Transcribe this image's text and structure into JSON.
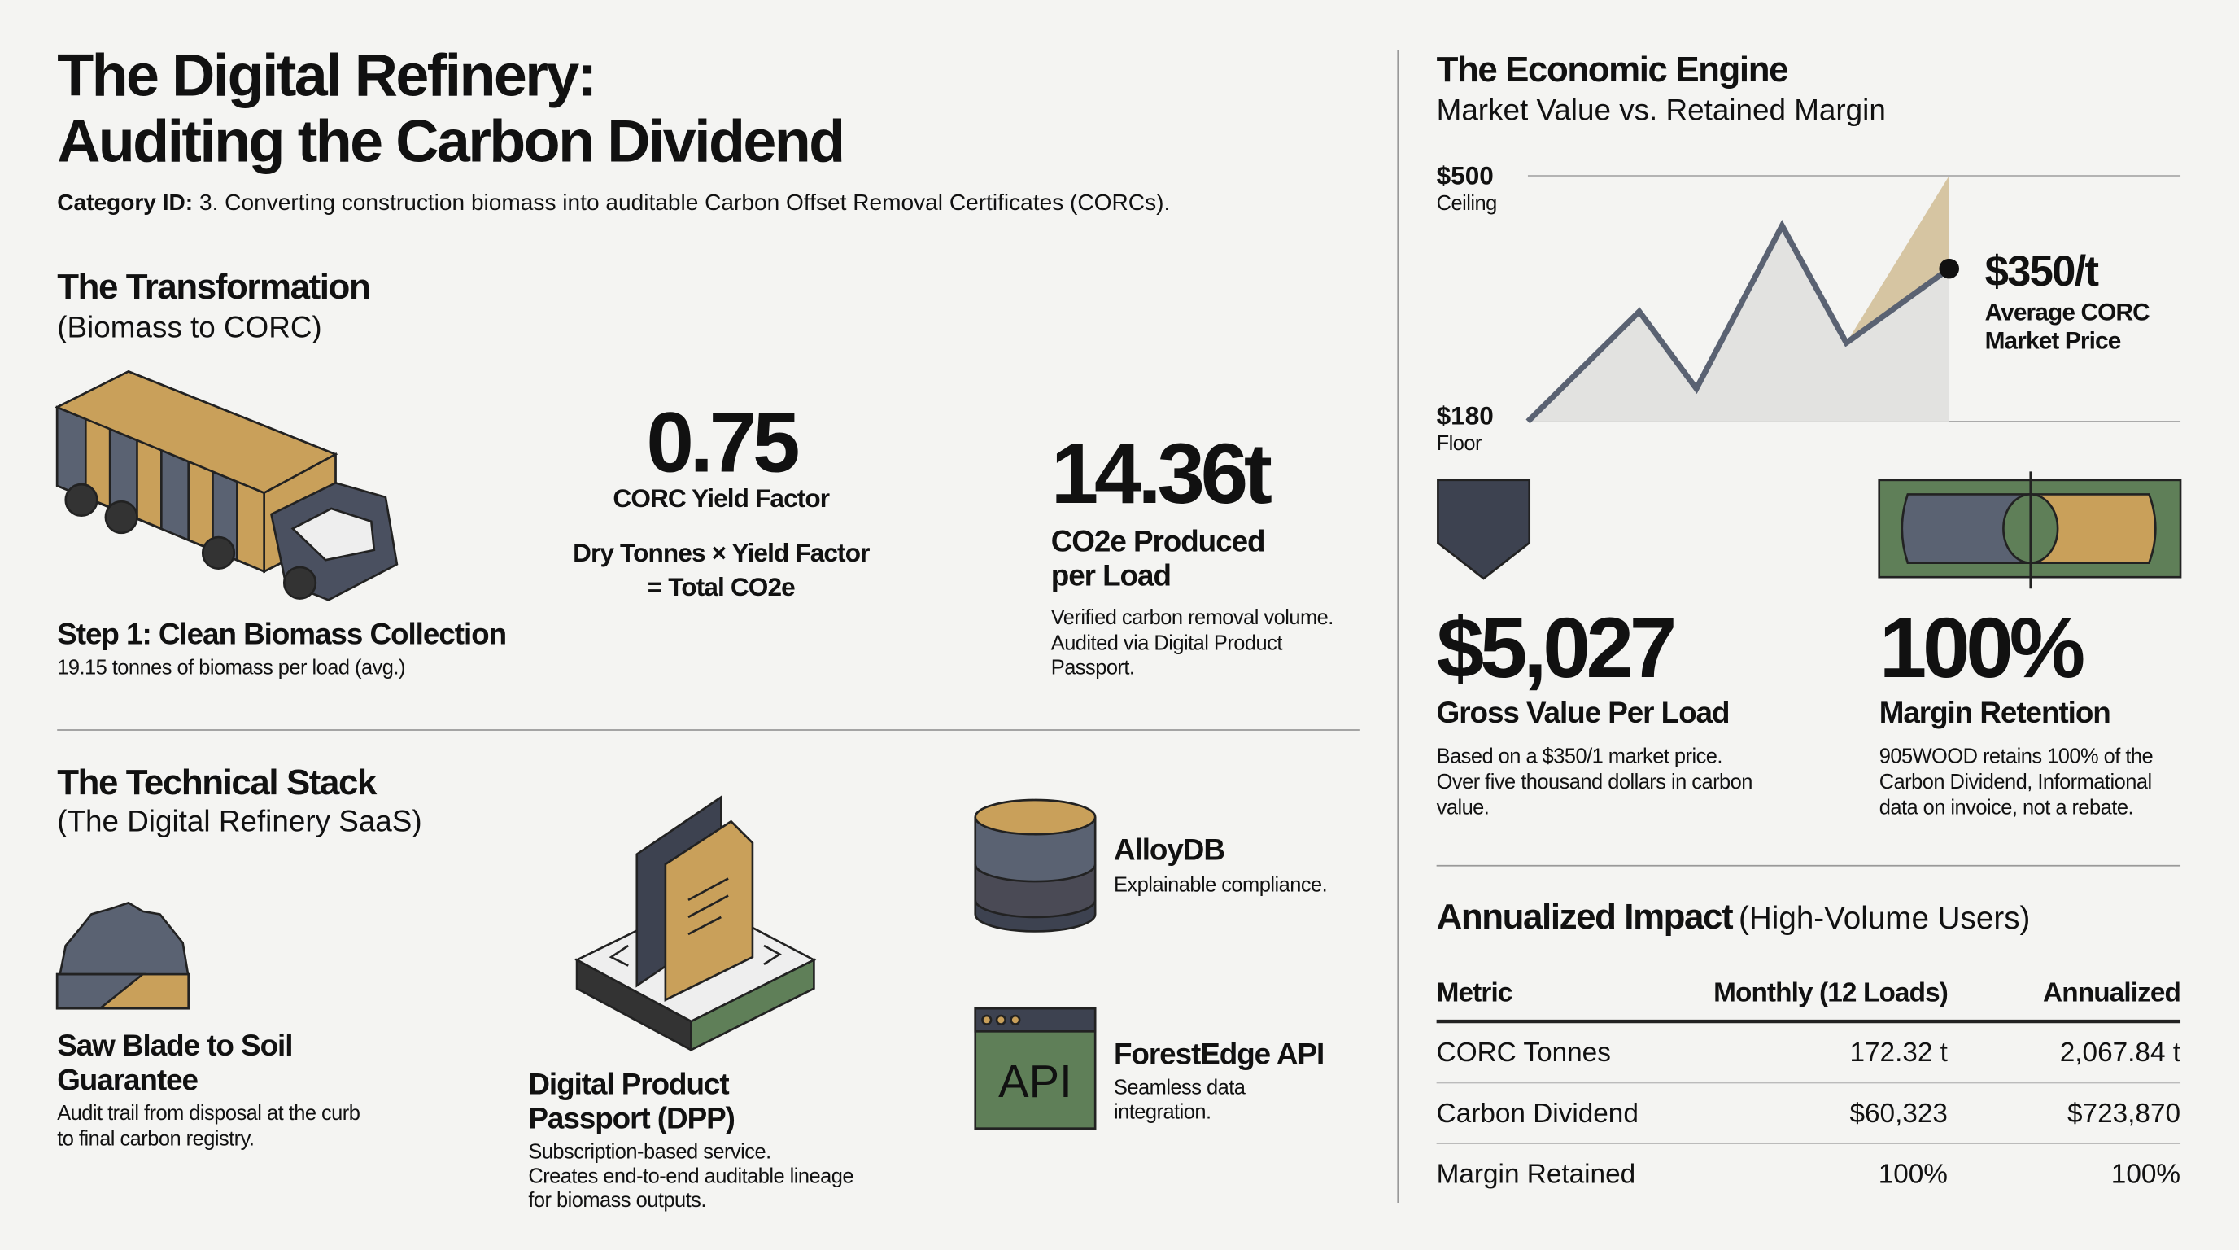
{
  "header": {
    "title_line1": "The Digital Refinery:",
    "title_line2": "Auditing the Carbon Dividend",
    "category_label": "Category ID:",
    "category_text": "3. Converting construction biomass into auditable Carbon Offset Removal Certificates (CORCs)."
  },
  "transformation": {
    "title": "The Transformation",
    "subtitle": "(Biomass to CORC)",
    "step_title": "Step 1: Clean Biomass Collection",
    "step_text": "19.15 tonnes of biomass per load (avg.)",
    "yield_value": "0.75",
    "yield_label": "CORC Yield Factor",
    "formula": [
      "Dry Tonnes × Yield Factor",
      "= Total CO2e"
    ],
    "co2_value": "14.36t",
    "co2_label": [
      "CO2e Produced",
      "per Load"
    ],
    "co2_text": [
      "Verified carbon removal volume.",
      "Audited via Digital Product",
      "Passport."
    ]
  },
  "stack": {
    "title": "The Technical Stack",
    "subtitle": "(The Digital Refinery SaaS)",
    "saw_title": [
      "Saw Blade to Soil",
      "Guarantee"
    ],
    "saw_text": [
      "Audit trail from disposal at the curb",
      "to final carbon registry."
    ],
    "dpp_title": [
      "Digital Product",
      "Passport (DPP)"
    ],
    "dpp_text": [
      "Subscription-based service.",
      "Creates end-to-end auditable lineage",
      "for biomass outputs."
    ],
    "alloydb_title": "AlloyDB",
    "alloydb_text": "Explainable compliance.",
    "api_icon": "API",
    "api_title": "ForestEdge API",
    "api_text": [
      "Seamless data",
      "integration."
    ]
  },
  "economic": {
    "title": "The Economic Engine",
    "subtitle": "Market Value vs. Retained Margin",
    "ceiling_value": "$500",
    "ceiling_label": "Ceiling",
    "floor_value": "$180",
    "floor_label": "Floor",
    "price_value": "$350/t",
    "price_label": [
      "Average CORC",
      "Market Price"
    ],
    "gross_value": "$5,027",
    "gross_label": "Gross Value Per Load",
    "gross_text": [
      "Based on a $350/1 market price.",
      "Over five thousand dollars in carbon",
      "value."
    ],
    "margin_value": "100%",
    "margin_label": "Margin Retention",
    "margin_text": [
      "905WOOD retains 100% of the",
      "Carbon Dividend, Informational",
      "data on invoice, not a rebate."
    ]
  },
  "table": {
    "title": "Annualized Impact",
    "subtitle": "(High-Volume Users)",
    "columns": [
      "Metric",
      "Monthly (12 Loads)",
      "Annualized"
    ],
    "rows": [
      [
        "CORC Tonnes",
        "172.32 t",
        "2,067.84 t"
      ],
      [
        "Carbon Dividend",
        "$60,323",
        "$723,870"
      ],
      [
        "Margin Retained",
        "100%",
        "100%"
      ]
    ]
  }
}
